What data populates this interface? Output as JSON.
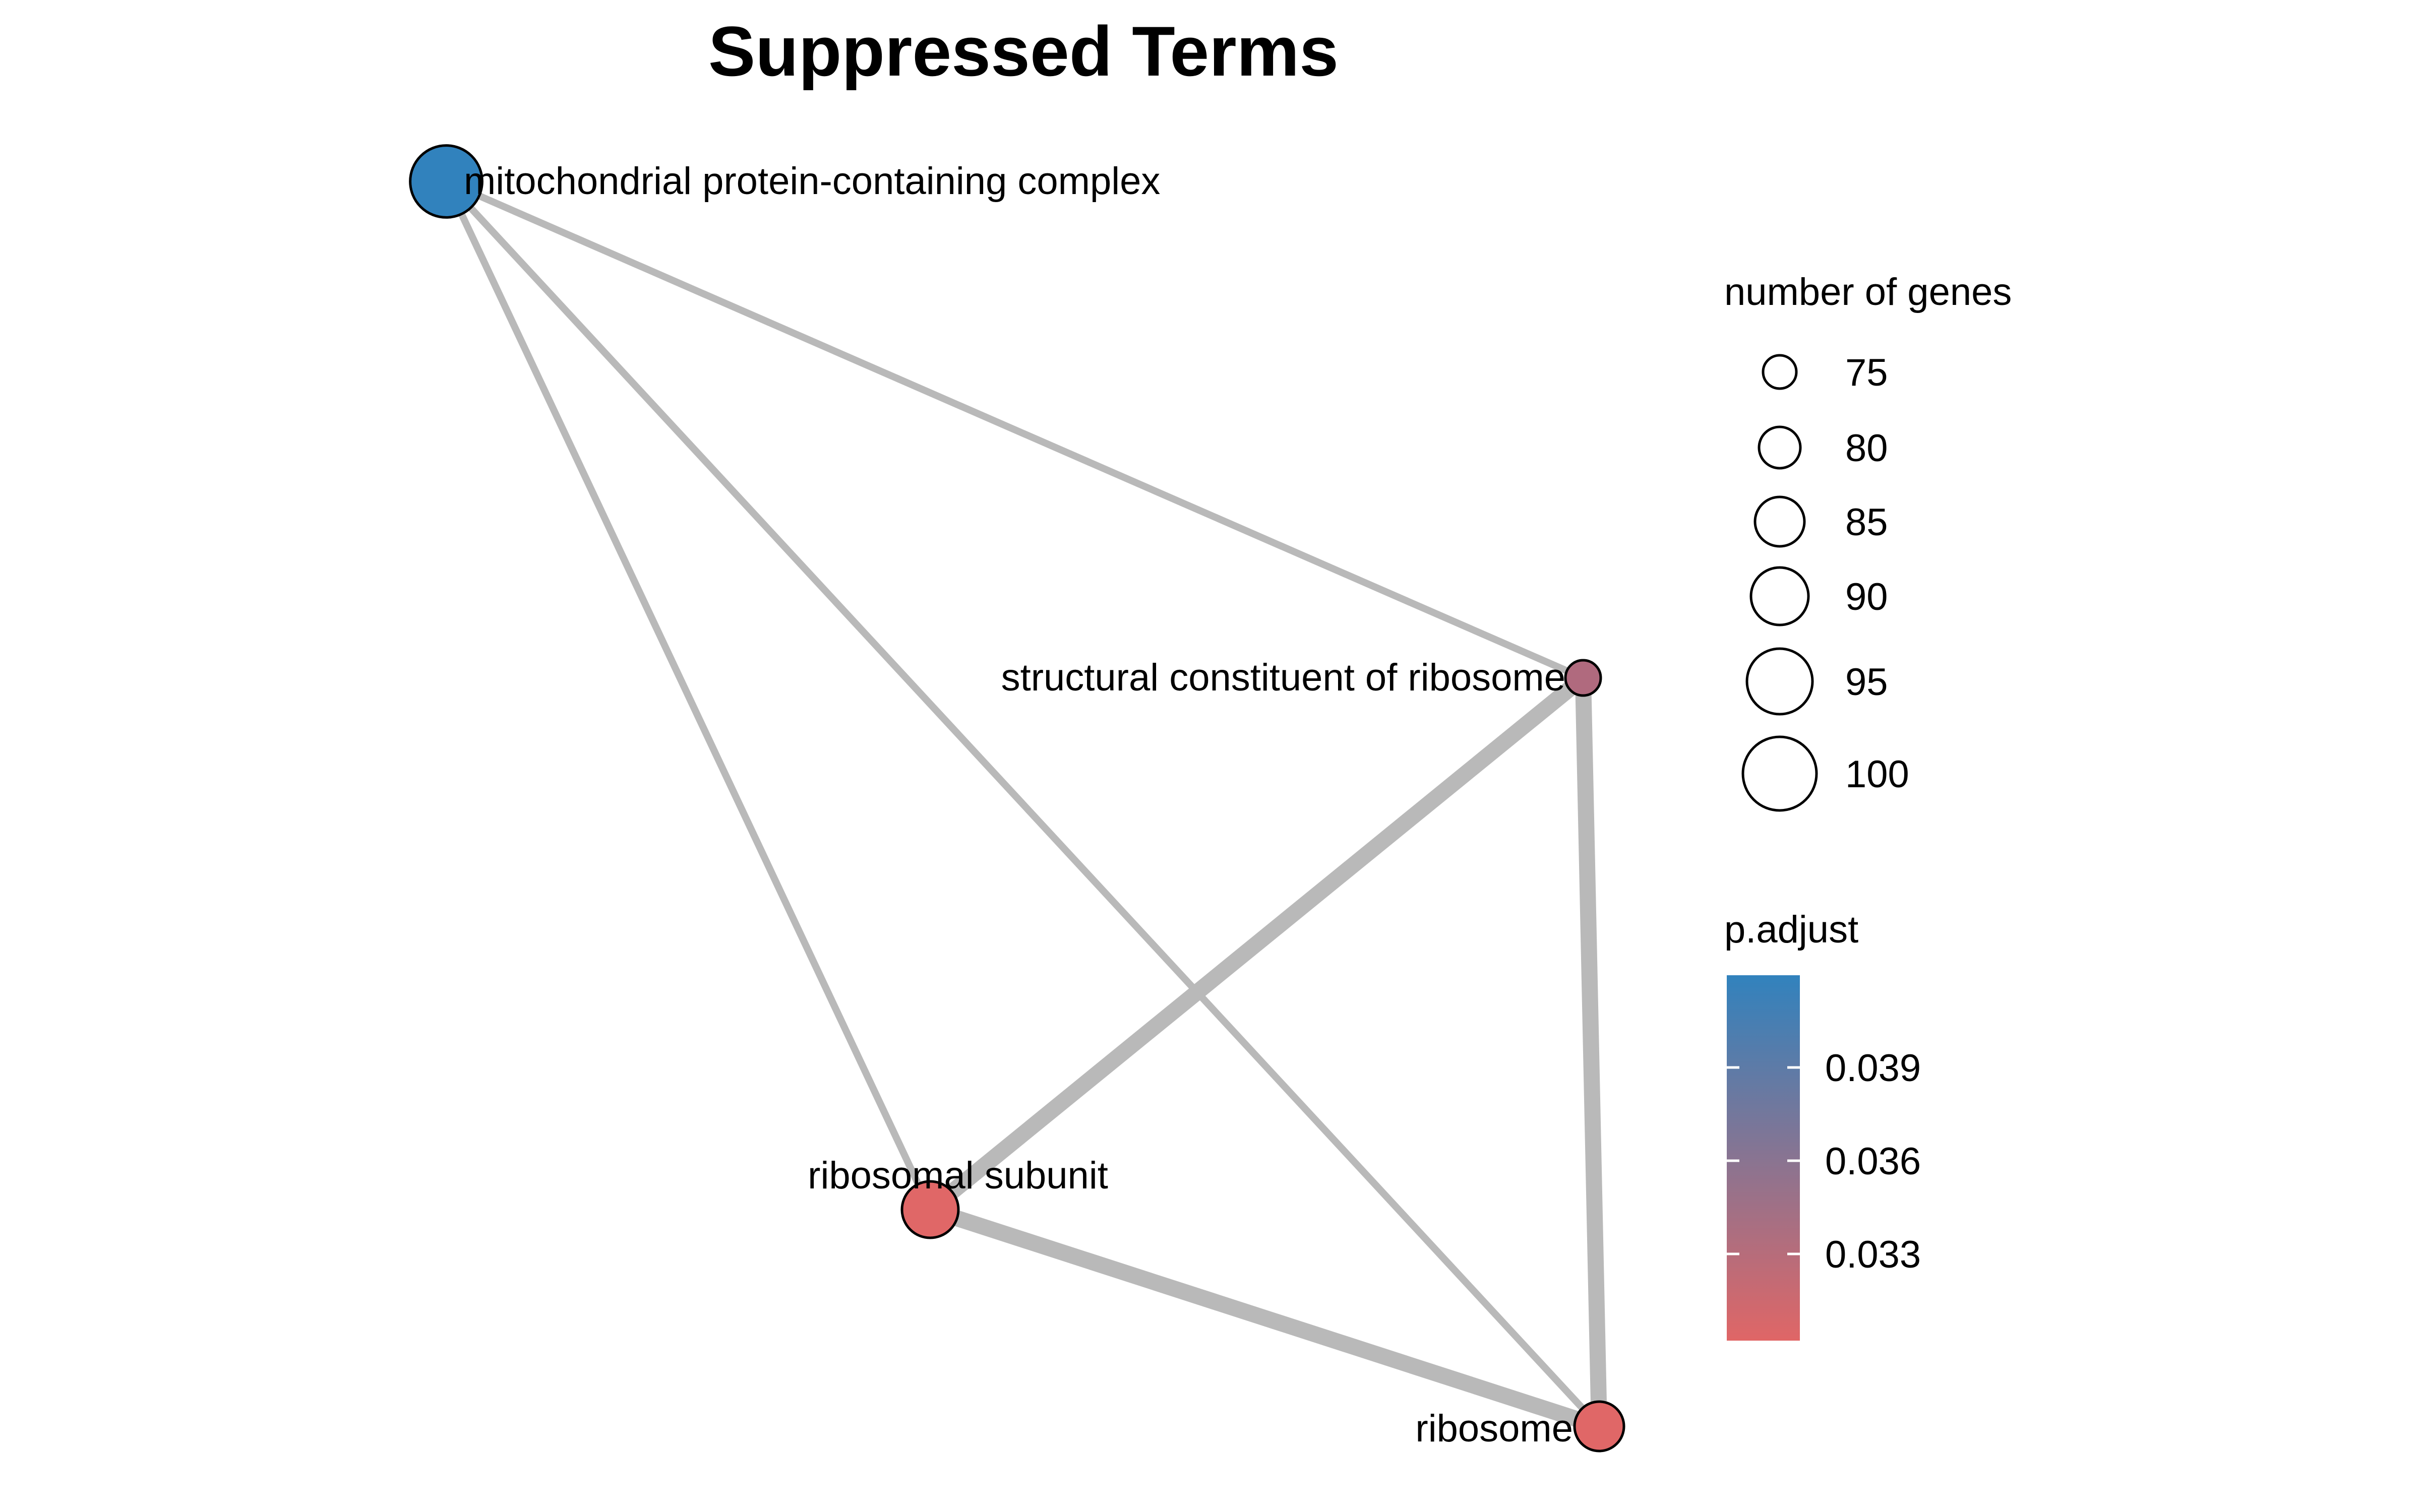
{
  "title": "Suppressed Terms",
  "colors": {
    "edge": "#b9b9b9",
    "node_stroke": "#000000",
    "scale_high": "#3182bd",
    "scale_low": "#e06666"
  },
  "nodes": [
    {
      "id": "mito",
      "label": "mitochondrial protein-containing complex",
      "color": "#3182bd",
      "genes": 101
    },
    {
      "id": "struct",
      "label": "structural constituent of ribosome",
      "color": "#b06a7e",
      "genes": 75
    },
    {
      "id": "subunit",
      "label": "ribosomal subunit",
      "color": "#e06767",
      "genes": 90
    },
    {
      "id": "ribosome",
      "label": "ribosome",
      "color": "#e06767",
      "genes": 85
    }
  ],
  "edges": [
    {
      "from": "mito",
      "to": "struct",
      "weight": 1
    },
    {
      "from": "mito",
      "to": "subunit",
      "weight": 1
    },
    {
      "from": "mito",
      "to": "ribosome",
      "weight": 1
    },
    {
      "from": "struct",
      "to": "subunit",
      "weight": 3
    },
    {
      "from": "struct",
      "to": "ribosome",
      "weight": 3
    },
    {
      "from": "subunit",
      "to": "ribosome",
      "weight": 3
    }
  ],
  "legend_size": {
    "title": "number of genes",
    "items": [
      {
        "label": "75",
        "value": 75
      },
      {
        "label": "80",
        "value": 80
      },
      {
        "label": "85",
        "value": 85
      },
      {
        "label": "90",
        "value": 90
      },
      {
        "label": "95",
        "value": 95
      },
      {
        "label": "100",
        "value": 100
      }
    ]
  },
  "legend_color": {
    "title": "p.adjust",
    "ticks": [
      "0.039",
      "0.036",
      "0.033"
    ]
  }
}
